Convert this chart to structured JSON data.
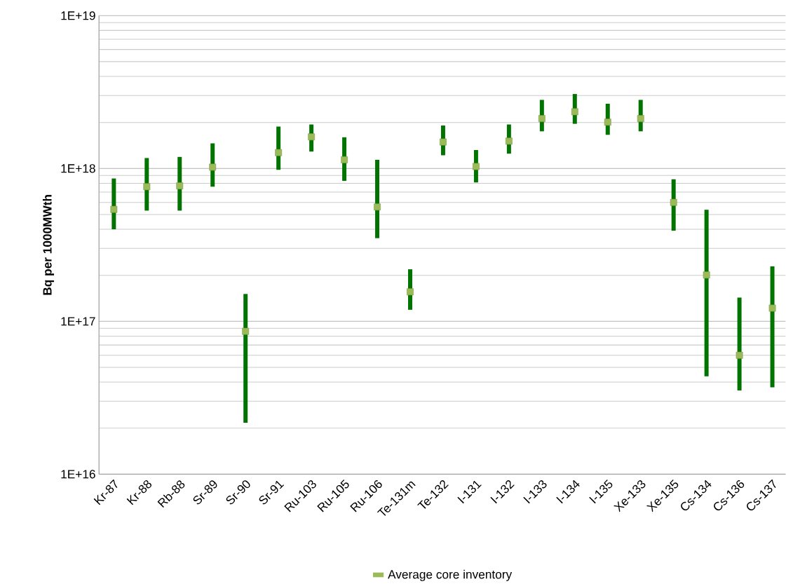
{
  "chart_data": {
    "type": "scatter",
    "ylabel": "Bq per 1000MWth",
    "categories": [
      "Kr-87",
      "Kr-88",
      "Rb-88",
      "Sr-89",
      "Sr-90",
      "Sr-91",
      "Ru-103",
      "Ru-105",
      "Ru-106",
      "Te-131m",
      "Te-132",
      "I-131",
      "I-132",
      "I-133",
      "I-134",
      "I-135",
      "Xe-133",
      "Xe-135",
      "Cs-134",
      "Cs-136",
      "Cs-137"
    ],
    "series": [
      {
        "name": "Average core inventory",
        "color": "#9bbb59",
        "values": [
          5.4e+17,
          7.6e+17,
          7.7e+17,
          1.02e+18,
          8.6e+16,
          1.27e+18,
          1.61e+18,
          1.14e+18,
          5.6e+17,
          1.56e+17,
          1.49e+18,
          1.03e+18,
          1.51e+18,
          2.12e+18,
          2.35e+18,
          2.01e+18,
          2.12e+18,
          6e+17,
          2.01e+17,
          6e+16,
          1.22e+17
        ],
        "errors": [
          [
            4e+17,
            8.6e+17
          ],
          [
            5.3e+17,
            1.17e+18
          ],
          [
            5.3e+17,
            1.19e+18
          ],
          [
            7.6e+17,
            1.46e+18
          ],
          [
            2.17e+16,
            1.51e+17
          ],
          [
            9.8e+17,
            1.88e+18
          ],
          [
            1.29e+18,
            1.94e+18
          ],
          [
            8.3e+17,
            1.6e+18
          ],
          [
            3.5e+17,
            1.14e+18
          ],
          [
            1.19e+17,
            2.19e+17
          ],
          [
            1.22e+18,
            1.91e+18
          ],
          [
            8.1e+17,
            1.32e+18
          ],
          [
            1.25e+18,
            1.94e+18
          ],
          [
            1.75e+18,
            2.81e+18
          ],
          [
            1.96e+18,
            3.07e+18
          ],
          [
            1.66e+18,
            2.65e+18
          ],
          [
            1.75e+18,
            2.81e+18
          ],
          [
            3.92e+17,
            8.5e+17
          ],
          [
            4.37e+16,
            5.37e+17
          ],
          [
            3.53e+16,
            1.43e+17
          ],
          [
            3.7e+16,
            2.29e+17
          ]
        ]
      }
    ],
    "log": "y",
    "ylim": [
      1e+16,
      1e+19
    ],
    "yticks": [
      {
        "value": 1e+16,
        "label": "1E+16"
      },
      {
        "value": 1e+17,
        "label": "1E+17"
      },
      {
        "value": 1e+18,
        "label": "1E+18"
      },
      {
        "value": 1e+19,
        "label": "1E+19"
      }
    ],
    "grid": "y",
    "legend": "bottom",
    "marker": "square"
  }
}
